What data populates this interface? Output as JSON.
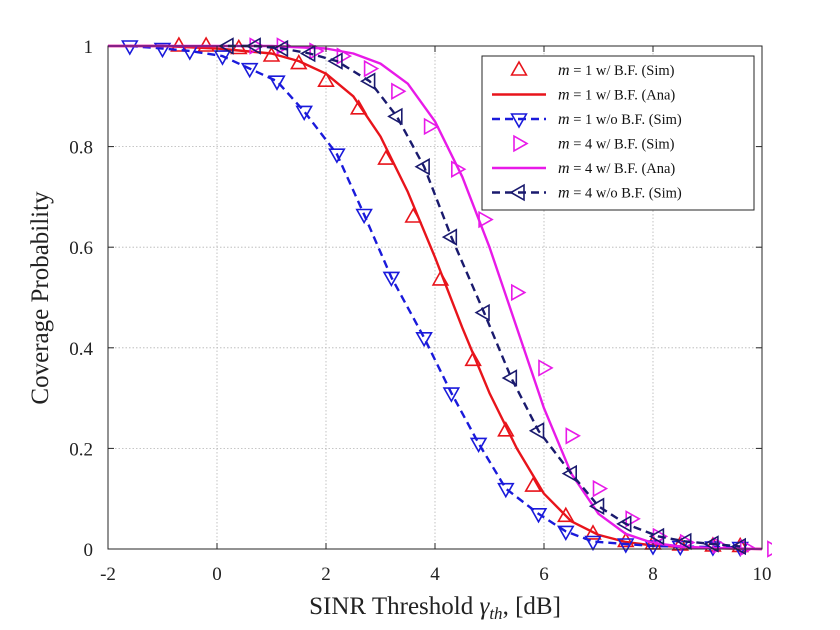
{
  "chart_data": {
    "type": "line",
    "xlabel": "SINR Threshold γth, [dB]",
    "xlabel_parts": {
      "main": "SINR Threshold ",
      "symbol": "γ",
      "subscript": "th",
      "tail": ", [dB]"
    },
    "ylabel": "Coverage Probability",
    "xlim": [
      -2,
      10
    ],
    "ylim": [
      0,
      1
    ],
    "xticks": [
      -2,
      0,
      2,
      4,
      6,
      8,
      10
    ],
    "yticks": [
      0,
      0.2,
      0.4,
      0.6,
      0.8,
      1
    ],
    "xtick_labels": [
      "-2",
      "0",
      "2",
      "4",
      "6",
      "8",
      "10"
    ],
    "ytick_labels": [
      "0",
      "0.2",
      "0.4",
      "0.6",
      "0.8",
      "1"
    ],
    "grid": true,
    "legend_position": "top-right",
    "series": [
      {
        "name": "m = 1 w/ B.F. (Sim)",
        "legend_parts": {
          "var": "m",
          "rest": " = 1 w/ B.F. (Sim)"
        },
        "color": "#e8141b",
        "marker": "triangle-up",
        "line": "none",
        "points": [
          [
            -0.7,
            1.0
          ],
          [
            -0.2,
            1.0
          ],
          [
            0.4,
            0.995
          ],
          [
            1.0,
            0.98
          ],
          [
            1.5,
            0.965
          ],
          [
            2.0,
            0.93
          ],
          [
            2.6,
            0.875
          ],
          [
            3.1,
            0.775
          ],
          [
            3.6,
            0.66
          ],
          [
            4.1,
            0.535
          ],
          [
            4.7,
            0.375
          ],
          [
            5.3,
            0.235
          ],
          [
            5.8,
            0.125
          ],
          [
            6.4,
            0.065
          ],
          [
            6.9,
            0.03
          ],
          [
            7.5,
            0.015
          ],
          [
            8.0,
            0.01
          ],
          [
            8.5,
            0.008
          ],
          [
            9.1,
            0.006
          ],
          [
            9.6,
            0.005
          ]
        ]
      },
      {
        "name": "m = 1 w/ B.F. (Ana)",
        "legend_parts": {
          "var": "m",
          "rest": " = 1 w/ B.F. (Ana)"
        },
        "color": "#e8141b",
        "marker": "none",
        "line": "solid",
        "points": [
          [
            -2.0,
            1.0
          ],
          [
            -1.0,
            1.0
          ],
          [
            0.0,
            0.995
          ],
          [
            0.5,
            0.99
          ],
          [
            1.0,
            0.985
          ],
          [
            1.5,
            0.97
          ],
          [
            2.0,
            0.945
          ],
          [
            2.5,
            0.9
          ],
          [
            3.0,
            0.82
          ],
          [
            3.5,
            0.71
          ],
          [
            4.0,
            0.58
          ],
          [
            4.5,
            0.44
          ],
          [
            5.0,
            0.31
          ],
          [
            5.5,
            0.2
          ],
          [
            6.0,
            0.11
          ],
          [
            6.5,
            0.055
          ],
          [
            7.0,
            0.028
          ],
          [
            7.5,
            0.014
          ],
          [
            8.0,
            0.007
          ],
          [
            9.0,
            0.002
          ],
          [
            10.0,
            0.0
          ]
        ]
      },
      {
        "name": "m = 1 w/o B.F. (Sim)",
        "legend_parts": {
          "var": "m",
          "rest": " = 1 w/o B.F. (Sim)"
        },
        "color": "#1a1adb",
        "marker": "triangle-down",
        "line": "dashed",
        "points": [
          [
            -1.6,
            1.0
          ],
          [
            -1.0,
            0.995
          ],
          [
            -0.5,
            0.99
          ],
          [
            0.1,
            0.98
          ],
          [
            0.6,
            0.955
          ],
          [
            1.1,
            0.93
          ],
          [
            1.6,
            0.87
          ],
          [
            2.2,
            0.785
          ],
          [
            2.7,
            0.665
          ],
          [
            3.2,
            0.54
          ],
          [
            3.8,
            0.42
          ],
          [
            4.3,
            0.31
          ],
          [
            4.8,
            0.21
          ],
          [
            5.3,
            0.12
          ],
          [
            5.9,
            0.07
          ],
          [
            6.4,
            0.035
          ],
          [
            6.9,
            0.015
          ],
          [
            7.5,
            0.01
          ],
          [
            8.0,
            0.006
          ],
          [
            8.5,
            0.005
          ],
          [
            9.1,
            0.004
          ],
          [
            9.6,
            0.003
          ]
        ]
      },
      {
        "name": "m = 4 w/ B.F. (Sim)",
        "legend_parts": {
          "var": "m",
          "rest": " = 4 w/ B.F. (Sim)"
        },
        "color": "#e81ae8",
        "marker": "triangle-right",
        "line": "none",
        "points": [
          [
            0.7,
            1.0
          ],
          [
            1.2,
            1.0
          ],
          [
            1.8,
            0.99
          ],
          [
            2.3,
            0.98
          ],
          [
            2.8,
            0.955
          ],
          [
            3.3,
            0.91
          ],
          [
            3.9,
            0.84
          ],
          [
            4.4,
            0.755
          ],
          [
            4.9,
            0.655
          ],
          [
            5.5,
            0.51
          ],
          [
            6.0,
            0.36
          ],
          [
            6.5,
            0.225
          ],
          [
            7.0,
            0.12
          ],
          [
            7.6,
            0.06
          ],
          [
            8.1,
            0.025
          ],
          [
            8.6,
            0.013
          ],
          [
            9.2,
            0.007
          ],
          [
            9.7,
            0.003
          ],
          [
            10.2,
            0.0
          ]
        ]
      },
      {
        "name": "m = 4 w/ B.F. (Ana)",
        "legend_parts": {
          "var": "m",
          "rest": " = 4 w/ B.F. (Ana)"
        },
        "color": "#e81ae8",
        "marker": "none",
        "line": "solid",
        "points": [
          [
            -2.0,
            1.0
          ],
          [
            0.0,
            1.0
          ],
          [
            1.0,
            1.0
          ],
          [
            2.0,
            0.995
          ],
          [
            2.5,
            0.985
          ],
          [
            3.0,
            0.965
          ],
          [
            3.5,
            0.925
          ],
          [
            4.0,
            0.85
          ],
          [
            4.5,
            0.74
          ],
          [
            5.0,
            0.6
          ],
          [
            5.5,
            0.44
          ],
          [
            6.0,
            0.28
          ],
          [
            6.5,
            0.15
          ],
          [
            7.0,
            0.07
          ],
          [
            7.5,
            0.03
          ],
          [
            8.0,
            0.012
          ],
          [
            8.5,
            0.005
          ],
          [
            9.0,
            0.002
          ],
          [
            10.0,
            0.0
          ]
        ]
      },
      {
        "name": "m = 4 w/o B.F. (Sim)",
        "legend_parts": {
          "var": "m",
          "rest": " = 4 w/o B.F. (Sim)"
        },
        "color": "#1a1a6e",
        "marker": "triangle-left",
        "line": "dashed",
        "points": [
          [
            0.2,
            1.0
          ],
          [
            0.7,
            1.0
          ],
          [
            1.2,
            0.995
          ],
          [
            1.7,
            0.985
          ],
          [
            2.2,
            0.97
          ],
          [
            2.8,
            0.93
          ],
          [
            3.3,
            0.86
          ],
          [
            3.8,
            0.76
          ],
          [
            4.3,
            0.62
          ],
          [
            4.9,
            0.47
          ],
          [
            5.4,
            0.34
          ],
          [
            5.9,
            0.235
          ],
          [
            6.5,
            0.15
          ],
          [
            7.0,
            0.085
          ],
          [
            7.5,
            0.05
          ],
          [
            8.1,
            0.025
          ],
          [
            8.6,
            0.015
          ],
          [
            9.1,
            0.01
          ],
          [
            9.6,
            0.005
          ]
        ]
      }
    ]
  }
}
